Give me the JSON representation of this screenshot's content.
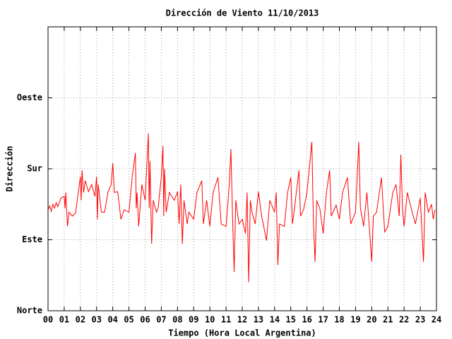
{
  "chart_data": {
    "type": "line",
    "title": "Dirección de Viento 11/10/2013",
    "xlabel": "Tiempo (Hora Local Argentina)",
    "ylabel": "Dirección",
    "color": "#ff0000",
    "grid": true,
    "xlim": [
      0,
      24
    ],
    "xticks": [
      {
        "value": 0,
        "label": "00"
      },
      {
        "value": 1,
        "label": "01"
      },
      {
        "value": 2,
        "label": "02"
      },
      {
        "value": 3,
        "label": "03"
      },
      {
        "value": 4,
        "label": "04"
      },
      {
        "value": 5,
        "label": "05"
      },
      {
        "value": 6,
        "label": "06"
      },
      {
        "value": 7,
        "label": "07"
      },
      {
        "value": 8,
        "label": "08"
      },
      {
        "value": 9,
        "label": "09"
      },
      {
        "value": 10,
        "label": "10"
      },
      {
        "value": 11,
        "label": "11"
      },
      {
        "value": 12,
        "label": "12"
      },
      {
        "value": 13,
        "label": "13"
      },
      {
        "value": 14,
        "label": "14"
      },
      {
        "value": 15,
        "label": "15"
      },
      {
        "value": 16,
        "label": "16"
      },
      {
        "value": 17,
        "label": "17"
      },
      {
        "value": 18,
        "label": "18"
      },
      {
        "value": 19,
        "label": "19"
      },
      {
        "value": 20,
        "label": "20"
      },
      {
        "value": 21,
        "label": "21"
      },
      {
        "value": 22,
        "label": "22"
      },
      {
        "value": 23,
        "label": "23"
      },
      {
        "value": 24,
        "label": "24"
      }
    ],
    "ylim": [
      0,
      360
    ],
    "yticks": [
      {
        "value": 0,
        "label": "Norte"
      },
      {
        "value": 90,
        "label": "Este"
      },
      {
        "value": 180,
        "label": "Sur"
      },
      {
        "value": 270,
        "label": "Oeste"
      }
    ],
    "x": [
      0.0,
      0.1,
      0.2,
      0.3,
      0.4,
      0.5,
      0.6,
      0.8,
      1.0,
      1.05,
      1.1,
      1.2,
      1.3,
      1.5,
      1.7,
      2.0,
      2.05,
      2.1,
      2.2,
      2.3,
      2.5,
      2.7,
      2.9,
      3.0,
      3.05,
      3.1,
      3.3,
      3.5,
      3.7,
      3.9,
      4.0,
      4.1,
      4.3,
      4.4,
      4.5,
      4.7,
      5.0,
      5.2,
      5.4,
      5.45,
      5.5,
      5.6,
      5.8,
      6.0,
      6.2,
      6.25,
      6.3,
      6.4,
      6.5,
      6.7,
      6.8,
      7.0,
      7.1,
      7.15,
      7.2,
      7.3,
      7.5,
      7.8,
      8.0,
      8.1,
      8.2,
      8.3,
      8.4,
      8.6,
      8.7,
      9.0,
      9.2,
      9.5,
      9.6,
      9.8,
      10.0,
      10.2,
      10.5,
      10.7,
      11.0,
      11.2,
      11.3,
      11.4,
      11.5,
      11.6,
      11.8,
      12.0,
      12.2,
      12.3,
      12.4,
      12.5,
      12.6,
      12.8,
      13.0,
      13.2,
      13.5,
      13.7,
      14.0,
      14.1,
      14.2,
      14.3,
      14.6,
      14.8,
      15.0,
      15.1,
      15.2,
      15.5,
      15.6,
      15.8,
      16.0,
      16.3,
      16.4,
      16.5,
      16.6,
      16.8,
      17.0,
      17.2,
      17.4,
      17.5,
      17.8,
      18.0,
      18.2,
      18.5,
      18.7,
      19.0,
      19.2,
      19.3,
      19.5,
      19.7,
      20.0,
      20.1,
      20.3,
      20.6,
      20.8,
      21.0,
      21.3,
      21.5,
      21.7,
      21.8,
      21.9,
      22.0,
      22.2,
      22.5,
      22.7,
      23.0,
      23.2,
      23.3,
      23.5,
      23.7,
      23.8,
      23.9
    ],
    "values": [
      128,
      133,
      126,
      135,
      130,
      137,
      132,
      143,
      145,
      130,
      150,
      107,
      125,
      120,
      124,
      170,
      140,
      178,
      150,
      165,
      151,
      160,
      145,
      170,
      116,
      160,
      125,
      125,
      150,
      160,
      187,
      150,
      151,
      135,
      116,
      128,
      125,
      170,
      200,
      130,
      150,
      107,
      160,
      140,
      225,
      130,
      190,
      85,
      140,
      125,
      130,
      170,
      209,
      120,
      180,
      125,
      150,
      140,
      151,
      110,
      160,
      85,
      140,
      110,
      125,
      116,
      150,
      165,
      110,
      140,
      107,
      150,
      169,
      110,
      107,
      160,
      205,
      120,
      49,
      140,
      110,
      116,
      98,
      150,
      36,
      140,
      125,
      110,
      151,
      120,
      89,
      140,
      125,
      150,
      58,
      110,
      107,
      150,
      169,
      110,
      125,
      178,
      120,
      129,
      150,
      214,
      110,
      62,
      140,
      129,
      98,
      150,
      178,
      120,
      134,
      116,
      150,
      169,
      110,
      125,
      214,
      130,
      107,
      150,
      62,
      120,
      125,
      169,
      100,
      107,
      150,
      160,
      120,
      198,
      130,
      107,
      150,
      125,
      110,
      143,
      62,
      150,
      125,
      135,
      116,
      128
    ]
  }
}
